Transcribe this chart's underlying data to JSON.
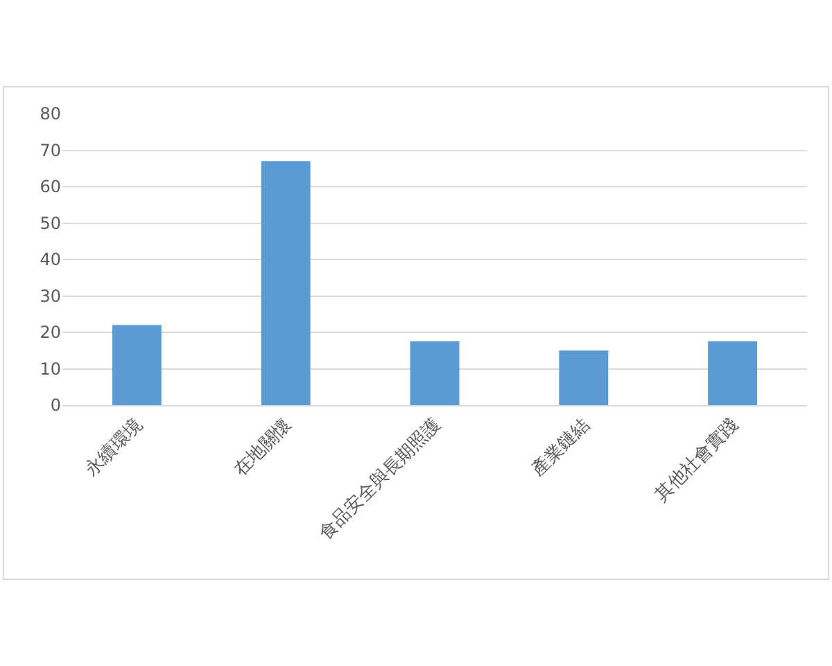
{
  "chart_data": {
    "type": "bar",
    "categories": [
      "永續環境",
      "在地關懷",
      "食品安全與長期照護",
      "產業鏈結",
      "其他社會實踐"
    ],
    "values": [
      22,
      67,
      17.5,
      15,
      17.5
    ],
    "color": "#5b9bd5",
    "ylim": [
      0,
      80
    ],
    "yticks": [
      0,
      10,
      20,
      30,
      40,
      50,
      60,
      70,
      80
    ],
    "grid": "y",
    "legend": false
  }
}
